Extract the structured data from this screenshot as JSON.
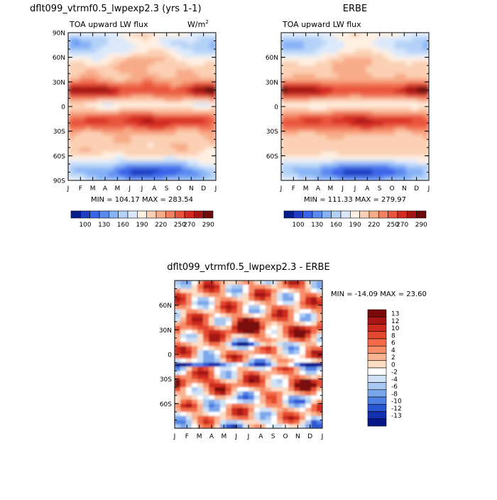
{
  "chart_data": [
    {
      "type": "heatmap",
      "title": "dflt099_vtrmf0.5_lwpexp2.3 (yrs 1-1)",
      "subtitle_left": "TOA upward LW flux",
      "units_base": "W/m",
      "units_exp": "2",
      "x_ticks": [
        "J",
        "F",
        "M",
        "A",
        "M",
        "J",
        "J",
        "A",
        "S",
        "O",
        "N",
        "D",
        "J"
      ],
      "y_ticks": [
        "90N",
        "60N",
        "30N",
        "0",
        "30S",
        "60S",
        "90S"
      ],
      "y_values": [
        90,
        60,
        30,
        0,
        -30,
        -60,
        -90
      ],
      "ylim": [
        -90,
        90
      ],
      "stats": "MIN = 104.17 MAX = 283.54",
      "colorbar_levels": [
        "100",
        "130",
        "160",
        "190",
        "220",
        "250",
        "270",
        "290"
      ],
      "colorbar_colors": [
        "#081d8c",
        "#1f3fc4",
        "#3a64e8",
        "#5a8af0",
        "#86b2f6",
        "#b4d2f8",
        "#dbe9fb",
        "#fff0e2",
        "#fbd0b4",
        "#f8ab88",
        "#f3805f",
        "#e9553d",
        "#d32a22",
        "#a71414",
        "#6e0a0a"
      ]
    },
    {
      "type": "heatmap",
      "title": "ERBE",
      "subtitle_left": "TOA upward LW flux",
      "x_ticks": [
        "J",
        "F",
        "M",
        "A",
        "M",
        "J",
        "J",
        "A",
        "S",
        "O",
        "N",
        "D",
        "J"
      ],
      "y_ticks": [
        "60N",
        "30N",
        "0",
        "30S",
        "60S"
      ],
      "y_values": [
        60,
        30,
        0,
        -30,
        -60
      ],
      "ylim": [
        -90,
        90
      ],
      "stats": "MIN = 111.33 MAX = 279.97",
      "colorbar_levels": [
        "100",
        "130",
        "160",
        "190",
        "220",
        "250",
        "270",
        "290"
      ],
      "colorbar_colors": [
        "#081d8c",
        "#1f3fc4",
        "#3a64e8",
        "#5a8af0",
        "#86b2f6",
        "#b4d2f8",
        "#dbe9fb",
        "#fff0e2",
        "#fbd0b4",
        "#f8ab88",
        "#f3805f",
        "#e9553d",
        "#d32a22",
        "#a71414",
        "#6e0a0a"
      ]
    },
    {
      "type": "heatmap",
      "title": "dflt099_vtrmf0.5_lwpexp2.3 - ERBE",
      "x_ticks": [
        "J",
        "F",
        "M",
        "A",
        "M",
        "J",
        "J",
        "A",
        "S",
        "O",
        "N",
        "D",
        "J"
      ],
      "y_ticks": [
        "60N",
        "30N",
        "0",
        "30S",
        "60S"
      ],
      "y_values": [
        60,
        30,
        0,
        -30,
        -60
      ],
      "ylim": [
        -90,
        90
      ],
      "stats": "MIN = -14.09 MAX =  23.60",
      "colorbar_levels": [
        "13",
        "12",
        "10",
        "8",
        "6",
        "4",
        "2",
        "0",
        "-2",
        "-4",
        "-6",
        "-8",
        "-10",
        "-12",
        "-13"
      ],
      "colorbar_colors": [
        "#7a0a0a",
        "#a61414",
        "#cc2a1e",
        "#e4492f",
        "#f26a47",
        "#f78e69",
        "#fab391",
        "#fddcc4",
        "#ffffff",
        "#cfe2f7",
        "#a8c8f2",
        "#7aa6ec",
        "#4f80e4",
        "#2a56d4",
        "#1230b0",
        "#06178a"
      ]
    }
  ]
}
